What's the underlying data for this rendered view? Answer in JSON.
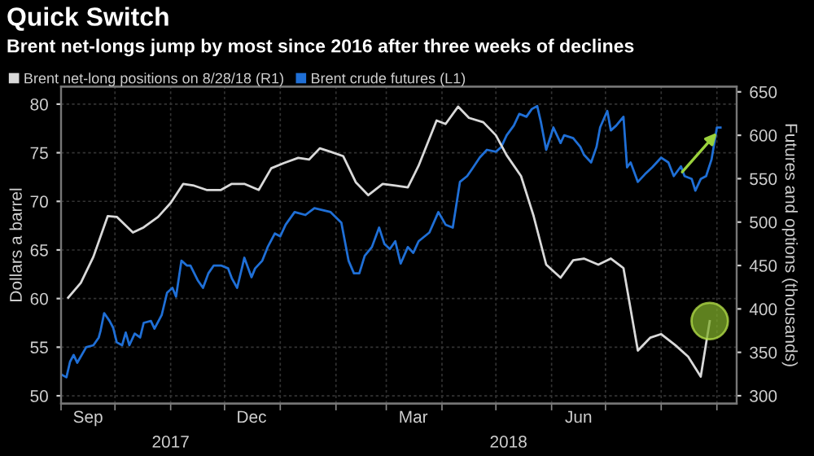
{
  "chart_data": {
    "type": "line",
    "title": "Quick Switch",
    "subtitle": "Brent net-longs jump by most since 2016 after three weeks of declines",
    "ylabel": "Dollars a barrel",
    "y2label": "Futures and options (thousands)",
    "xlim": [
      "2017-09-01",
      "2018-09-12"
    ],
    "xticks": [
      {
        "value": "2017-09-01",
        "label": null
      },
      {
        "value": "2017-09-16",
        "label": "Sep"
      },
      {
        "value": "2017-10-01",
        "label": null
      },
      {
        "value": "2017-11-01",
        "label": null
      },
      {
        "value": "2017-12-01",
        "label": null
      },
      {
        "value": "2017-12-16",
        "label": "Dec"
      },
      {
        "value": "2018-01-01",
        "label": null
      },
      {
        "value": "2018-02-01",
        "label": null
      },
      {
        "value": "2018-03-01",
        "label": null
      },
      {
        "value": "2018-03-16",
        "label": "Mar"
      },
      {
        "value": "2018-04-01",
        "label": null
      },
      {
        "value": "2018-05-01",
        "label": null
      },
      {
        "value": "2018-06-01",
        "label": null
      },
      {
        "value": "2018-06-16",
        "label": "Jun"
      },
      {
        "value": "2018-07-01",
        "label": null
      },
      {
        "value": "2018-08-01",
        "label": null
      },
      {
        "value": "2018-09-01",
        "label": null
      }
    ],
    "ylim": [
      49.2,
      81.8
    ],
    "yticks": [
      50,
      55,
      60,
      65,
      70,
      75,
      80
    ],
    "y2lim": [
      291,
      656
    ],
    "y2ticks": [
      300,
      350,
      400,
      450,
      500,
      550,
      600,
      650
    ],
    "grid": true,
    "legend": "top left",
    "annotations": [
      "2017",
      "2018"
    ],
    "series": [
      {
        "name": "Brent net-long positions on 8/28/18 (R1)",
        "color": "#d9d9d9",
        "axis": "y2",
        "x": [
          "2017-09-05",
          "2017-09-12",
          "2017-09-19",
          "2017-09-27",
          "2017-10-02",
          "2017-10-11",
          "2017-10-17",
          "2017-10-25",
          "2017-11-01",
          "2017-11-08",
          "2017-11-14",
          "2017-11-21",
          "2017-11-29",
          "2017-12-05",
          "2017-12-12",
          "2017-12-20",
          "2017-12-27",
          "2018-01-03",
          "2018-01-11",
          "2018-01-17",
          "2018-01-23",
          "2018-01-29",
          "2018-02-05",
          "2018-02-12",
          "2018-02-19",
          "2018-02-27",
          "2018-03-06",
          "2018-03-13",
          "2018-03-19",
          "2018-03-29",
          "2018-04-03",
          "2018-04-10",
          "2018-04-16",
          "2018-04-24",
          "2018-05-01",
          "2018-05-07",
          "2018-05-15",
          "2018-05-22",
          "2018-05-29",
          "2018-06-06",
          "2018-06-13",
          "2018-06-19",
          "2018-06-27",
          "2018-07-04",
          "2018-07-11",
          "2018-07-19",
          "2018-07-26",
          "2018-08-01",
          "2018-08-09",
          "2018-08-16",
          "2018-08-23",
          "2018-08-28"
        ],
        "values": [
          413,
          430,
          460,
          507,
          506,
          488,
          494,
          506,
          522,
          544,
          542,
          537,
          537,
          544,
          544,
          537,
          562,
          568,
          574,
          572,
          585,
          581,
          576,
          546,
          531,
          544,
          542,
          540,
          565,
          617,
          613,
          633,
          620,
          615,
          600,
          577,
          553,
          507,
          451,
          436,
          456,
          458,
          451,
          458,
          447,
          352,
          367,
          371,
          358,
          345,
          322,
          386
        ]
      },
      {
        "name": "Brent crude futures (L1)",
        "color": "#1f6fd6",
        "axis": "y",
        "x": [
          "2017-09-01",
          "2017-09-04",
          "2017-09-06",
          "2017-09-08",
          "2017-09-10",
          "2017-09-15",
          "2017-09-19",
          "2017-09-22",
          "2017-09-23",
          "2017-09-25",
          "2017-09-28",
          "2017-09-30",
          "2017-10-02",
          "2017-10-05",
          "2017-10-07",
          "2017-10-09",
          "2017-10-12",
          "2017-10-15",
          "2017-10-17",
          "2017-10-21",
          "2017-10-23",
          "2017-10-27",
          "2017-10-30",
          "2017-11-02",
          "2017-11-04",
          "2017-11-07",
          "2017-11-10",
          "2017-11-12",
          "2017-11-16",
          "2017-11-19",
          "2017-11-22",
          "2017-11-25",
          "2017-11-29",
          "2017-12-03",
          "2017-12-05",
          "2017-12-08",
          "2017-12-11",
          "2017-12-12",
          "2017-12-16",
          "2017-12-18",
          "2017-12-22",
          "2017-12-25",
          "2017-12-29",
          "2018-01-01",
          "2018-01-04",
          "2018-01-09",
          "2018-01-15",
          "2018-01-20",
          "2018-01-29",
          "2018-02-04",
          "2018-02-08",
          "2018-02-11",
          "2018-02-14",
          "2018-02-17",
          "2018-02-21",
          "2018-02-25",
          "2018-02-28",
          "2018-03-03",
          "2018-03-06",
          "2018-03-09",
          "2018-03-13",
          "2018-03-16",
          "2018-03-19",
          "2018-03-25",
          "2018-03-30",
          "2018-04-03",
          "2018-04-07",
          "2018-04-11",
          "2018-04-15",
          "2018-04-18",
          "2018-04-22",
          "2018-04-26",
          "2018-05-01",
          "2018-05-04",
          "2018-05-07",
          "2018-05-11",
          "2018-05-14",
          "2018-05-18",
          "2018-05-21",
          "2018-05-24",
          "2018-05-26",
          "2018-05-29",
          "2018-06-01",
          "2018-06-02",
          "2018-06-06",
          "2018-06-08",
          "2018-06-13",
          "2018-06-17",
          "2018-06-19",
          "2018-06-23",
          "2018-06-26",
          "2018-06-28",
          "2018-07-02",
          "2018-07-04",
          "2018-07-07",
          "2018-07-11",
          "2018-07-13",
          "2018-07-15",
          "2018-07-19",
          "2018-07-23",
          "2018-07-27",
          "2018-08-01",
          "2018-08-05",
          "2018-08-08",
          "2018-08-12",
          "2018-08-14",
          "2018-08-18",
          "2018-08-20",
          "2018-08-23",
          "2018-08-26",
          "2018-08-29",
          "2018-09-01",
          "2018-09-03"
        ],
        "values": [
          52.2,
          51.9,
          53.5,
          54.2,
          53.4,
          55.0,
          55.2,
          56.0,
          56.7,
          58.5,
          57.7,
          57.0,
          55.5,
          55.2,
          56.5,
          55.2,
          56.4,
          56.0,
          57.5,
          57.7,
          56.9,
          58.3,
          60.6,
          61.1,
          60.2,
          63.9,
          63.4,
          63.4,
          61.9,
          61.1,
          62.6,
          63.4,
          63.4,
          63.1,
          62.1,
          61.1,
          63.4,
          64.2,
          62.2,
          63.1,
          63.9,
          65.3,
          66.7,
          66.4,
          67.6,
          68.9,
          68.6,
          69.3,
          68.9,
          67.8,
          63.9,
          62.6,
          62.6,
          64.4,
          65.3,
          67.3,
          65.6,
          65.1,
          65.9,
          63.6,
          65.3,
          64.7,
          65.9,
          66.8,
          68.9,
          67.6,
          67.3,
          72.0,
          72.6,
          73.4,
          74.5,
          75.3,
          75.1,
          75.6,
          76.8,
          77.8,
          79.0,
          78.7,
          79.5,
          79.8,
          78.2,
          75.3,
          77.0,
          77.6,
          76.0,
          76.8,
          76.5,
          75.6,
          74.8,
          74.0,
          75.6,
          77.6,
          79.3,
          77.3,
          77.8,
          78.7,
          73.5,
          74.0,
          72.0,
          72.8,
          73.5,
          74.5,
          74.0,
          72.6,
          73.6,
          72.6,
          72.3,
          71.1,
          72.3,
          72.6,
          74.3,
          77.6,
          77.6
        ]
      }
    ]
  }
}
